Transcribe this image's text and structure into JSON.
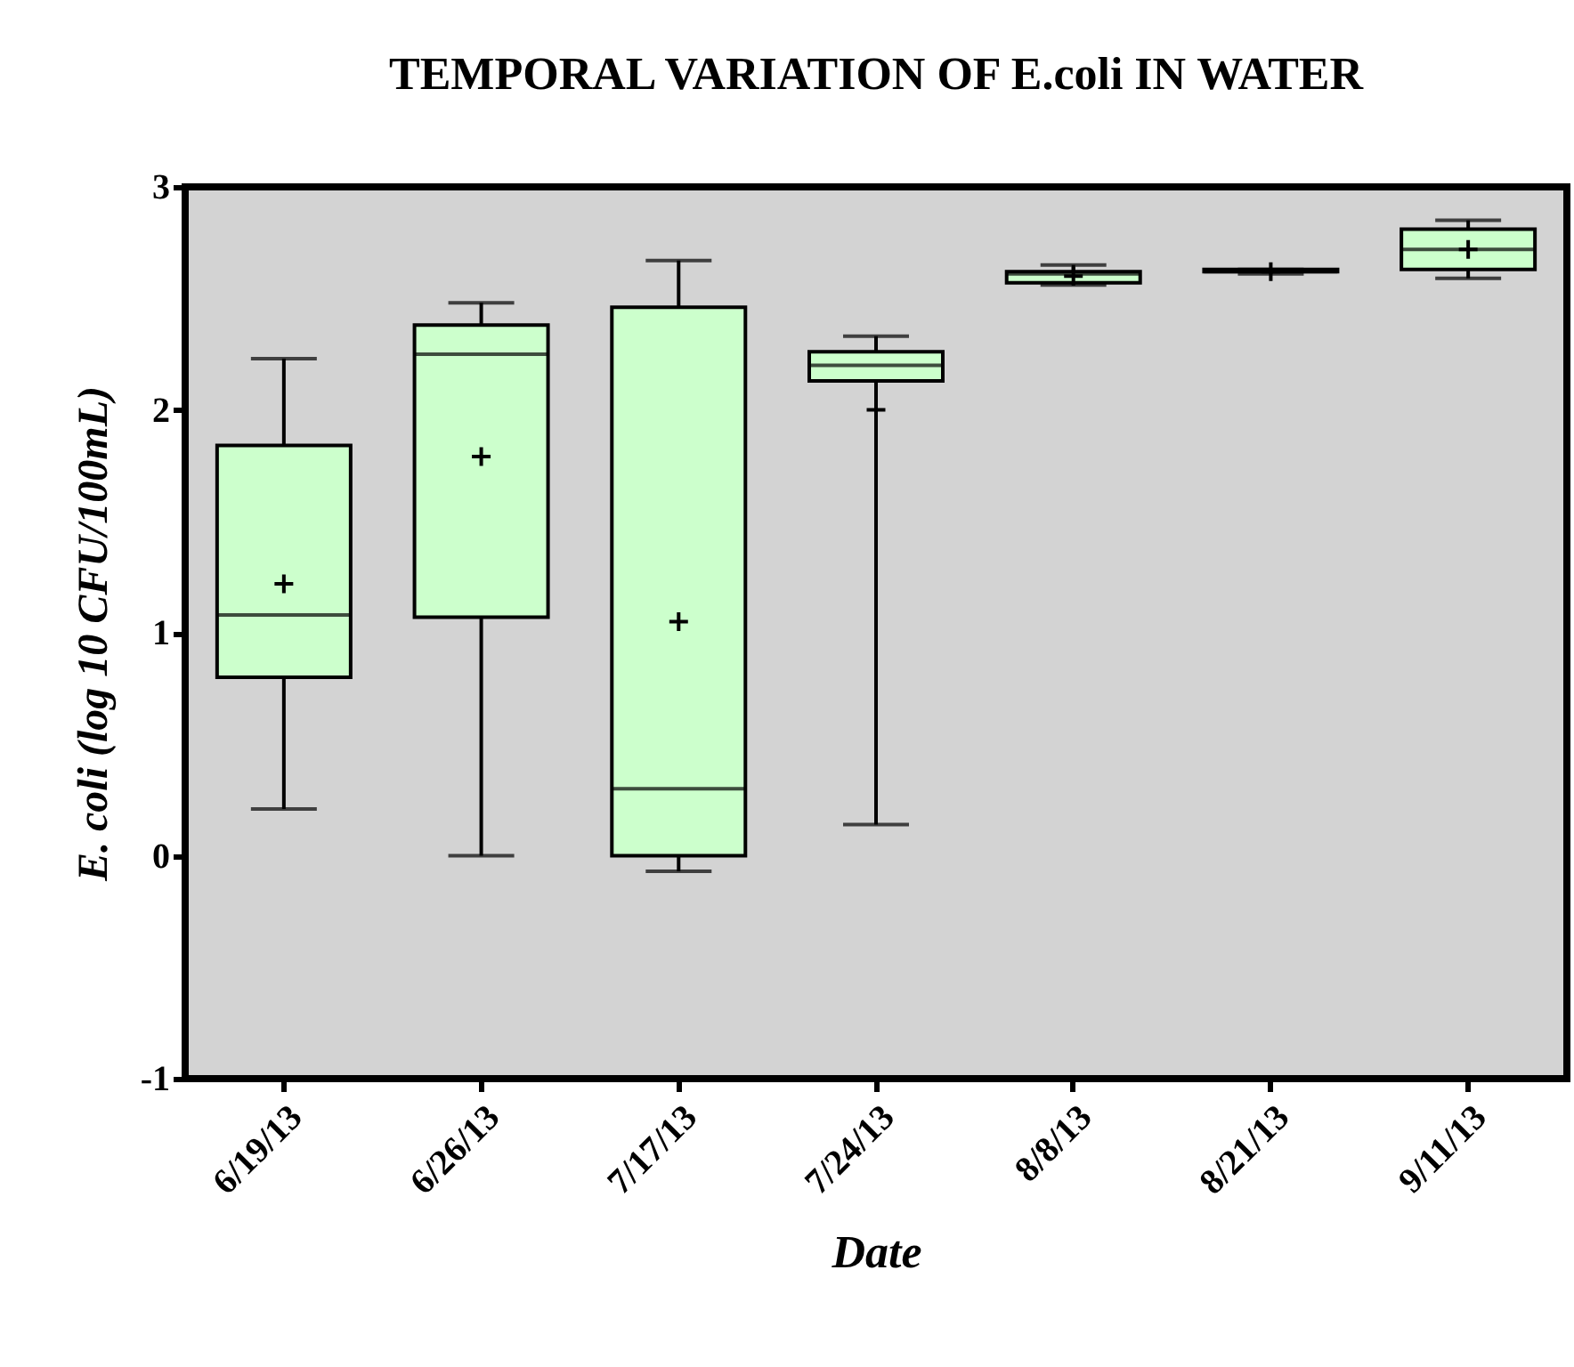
{
  "chart_data": {
    "type": "box",
    "title": "TEMPORAL VARIATION OF E.coli IN WATER",
    "xlabel": "Date",
    "ylabel": "E. coli (log 10 CFU/100mL)",
    "categories": [
      "6/19/13",
      "6/26/13",
      "7/17/13",
      "7/24/13",
      "8/8/13",
      "8/21/13",
      "9/11/13"
    ],
    "series": [
      {
        "color": "#ccffcc",
        "boxes": [
          {
            "low": 0.21,
            "q1": 0.8,
            "median": 1.08,
            "q3": 1.84,
            "high": 2.23,
            "mean": 1.22
          },
          {
            "low": 0,
            "q1": 1.07,
            "median": 2.25,
            "q3": 2.38,
            "high": 2.48,
            "mean": 1.79
          },
          {
            "low": -0.07,
            "q1": 0,
            "median": 0.3,
            "q3": 2.46,
            "high": 2.67,
            "mean": 1.05
          },
          {
            "low": 0.14,
            "q1": 2.13,
            "median": 2.2,
            "q3": 2.26,
            "high": 2.33,
            "mean": 2.0
          },
          {
            "low": 2.56,
            "q1": 2.57,
            "median": 2.61,
            "q3": 2.62,
            "high": 2.65,
            "mean": 2.6
          },
          {
            "low": 2.61,
            "q1": 2.62,
            "median": 2.62,
            "q3": 2.63,
            "high": 2.63,
            "mean": 2.62
          },
          {
            "low": 2.59,
            "q1": 2.63,
            "median": 2.72,
            "q3": 2.81,
            "high": 2.85,
            "mean": 2.72
          }
        ]
      }
    ],
    "ylim": [
      -1,
      3
    ],
    "yticks": [
      -1,
      0,
      1,
      2,
      3
    ],
    "grid": false,
    "marker": "cross"
  }
}
